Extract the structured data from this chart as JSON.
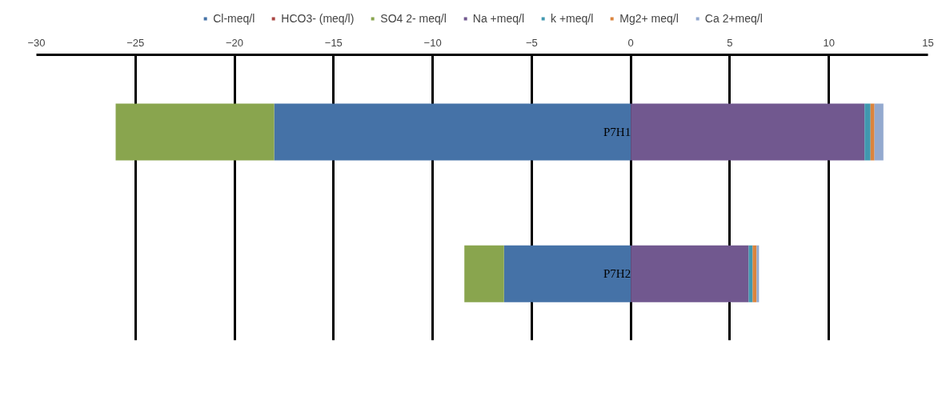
{
  "chart_data": {
    "type": "bar",
    "orientation": "horizontal",
    "stacked": true,
    "categories": [
      "P7H1",
      "P7H2"
    ],
    "series": [
      {
        "name": "Cl-meq/l",
        "color": "#4572a7",
        "values": [
          -18.0,
          -6.4
        ]
      },
      {
        "name": "HCO3- (meq/l)",
        "color": "#aa4643",
        "values": [
          0,
          0
        ]
      },
      {
        "name": "SO4 2- meq/l",
        "color": "#89a54e",
        "values": [
          -8.0,
          -2.0
        ]
      },
      {
        "name": "Na +meq/l",
        "color": "#71588f",
        "values": [
          11.8,
          5.95
        ]
      },
      {
        "name": "k +meq/l",
        "color": "#4198af",
        "values": [
          0.3,
          0.2
        ]
      },
      {
        "name": "Mg2+ meq/l",
        "color": "#db843d",
        "values": [
          0.2,
          0.2
        ]
      },
      {
        "name": "Ca 2+meq/l",
        "color": "#93a9cf",
        "values": [
          0.45,
          0.12
        ]
      }
    ],
    "xlim": [
      -30,
      15
    ],
    "xticks": [
      -30,
      -25,
      -20,
      -15,
      -10,
      -5,
      0,
      5,
      10,
      15
    ],
    "grid": "x",
    "legend": "top"
  }
}
